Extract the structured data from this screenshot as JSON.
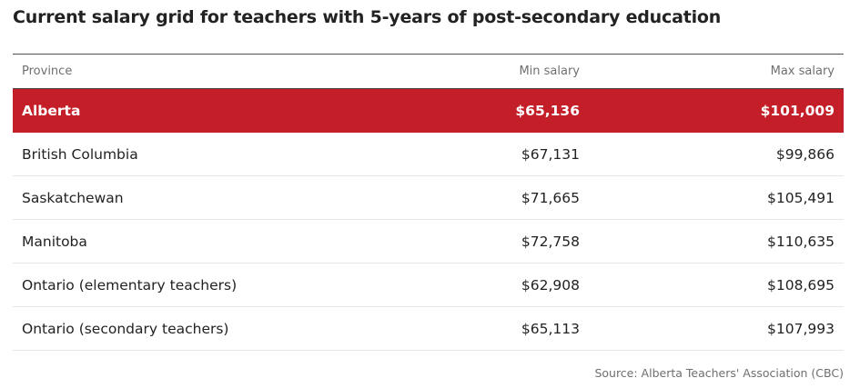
{
  "title": "Current salary grid for teachers with 5-years of post-secondary education",
  "chart_data": {
    "type": "table",
    "title": "Current salary grid for teachers with 5-years of post-secondary education",
    "columns": [
      "Province",
      "Min salary",
      "Max salary"
    ],
    "highlight_color": "#c41f28",
    "rows": [
      {
        "province": "Alberta",
        "min_salary": "$65,136",
        "max_salary": "$101,009",
        "highlighted": true
      },
      {
        "province": "British Columbia",
        "min_salary": "$67,131",
        "max_salary": "$99,866",
        "highlighted": false
      },
      {
        "province": "Saskatchewan",
        "min_salary": "$71,665",
        "max_salary": "$105,491",
        "highlighted": false
      },
      {
        "province": "Manitoba",
        "min_salary": "$72,758",
        "max_salary": "$110,635",
        "highlighted": false
      },
      {
        "province": "Ontario (elementary teachers)",
        "min_salary": "$62,908",
        "max_salary": "$108,695",
        "highlighted": false
      },
      {
        "province": "Ontario (secondary teachers)",
        "min_salary": "$65,113",
        "max_salary": "$107,993",
        "highlighted": false
      }
    ]
  },
  "source": "Source: Alberta Teachers' Association (CBC)"
}
